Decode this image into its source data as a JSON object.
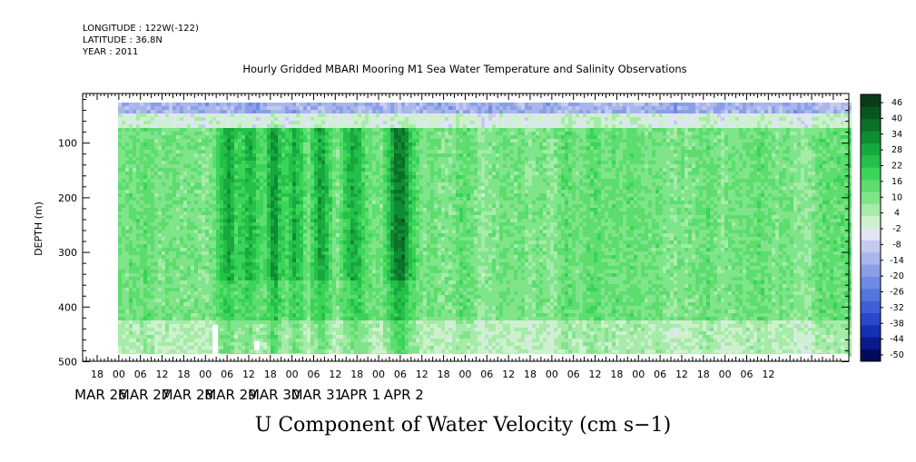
{
  "header": {
    "longitude": "LONGITUDE : 122W(-122)",
    "latitude": "LATITUDE : 36.8N",
    "year": "YEAR : 2011"
  },
  "chart_data": {
    "type": "heatmap",
    "title": "Hourly Gridded MBARI Mooring M1 Sea Water Temperature and Salinity Observations",
    "xlabel": "U Component of Water Velocity (cm s−1)",
    "ylabel": "DEPTH (m)",
    "ylim": [
      500,
      10
    ],
    "y_ticks": [
      100,
      200,
      300,
      400,
      500
    ],
    "x_hour_ticks": [
      "18",
      "00",
      "06",
      "12",
      "18",
      "00",
      "06",
      "12",
      "18",
      "00",
      "06",
      "12",
      "18",
      "00",
      "06",
      "12",
      "18",
      "00",
      "06",
      "12",
      "18",
      "00",
      "06",
      "12",
      "18",
      "00",
      "06",
      "12",
      "18",
      "00",
      "06",
      "12"
    ],
    "x_day_labels": [
      "MAR 26",
      "MAR 27",
      "MAR 28",
      "MAR 29",
      "MAR 30",
      "MAR 31",
      "APR  1",
      "APR  2"
    ],
    "colorbar": {
      "labels": [
        "46",
        "40",
        "34",
        "28",
        "22",
        "16",
        "10",
        "4",
        "-2",
        "-8",
        "-14",
        "-20",
        "-26",
        "-32",
        "-38",
        "-44",
        "-50"
      ],
      "min": -50,
      "max": 52,
      "colors_low_to_high": [
        "#040a5a",
        "#0a1a8c",
        "#1530b0",
        "#2a48c8",
        "#3f5fd6",
        "#5575dc",
        "#6e8ae2",
        "#8a9fe6",
        "#a8b6ea",
        "#c4cbee",
        "#dfe5f5",
        "#cdf1cd",
        "#a6eba9",
        "#7fe48a",
        "#5cdd6e",
        "#3ad458",
        "#25c04a",
        "#18a83e",
        "#0f8c32",
        "#0b7028",
        "#09551f",
        "#083d18"
      ]
    },
    "field_pattern": {
      "description_values_cm_s": "",
      "surface_band_mean": -12,
      "interior_mean": 14,
      "strong_positive_columns_hours_from_MAR26_18": [
        72,
        84,
        97,
        108,
        123,
        140,
        164,
        170
      ],
      "missing_data_gaps_hours_from_MAR26_18": [
        [
          5,
          6,
          440,
          500
        ],
        [
          63,
          64,
          432,
          500
        ],
        [
          86,
          87,
          462,
          478
        ]
      ]
    }
  }
}
